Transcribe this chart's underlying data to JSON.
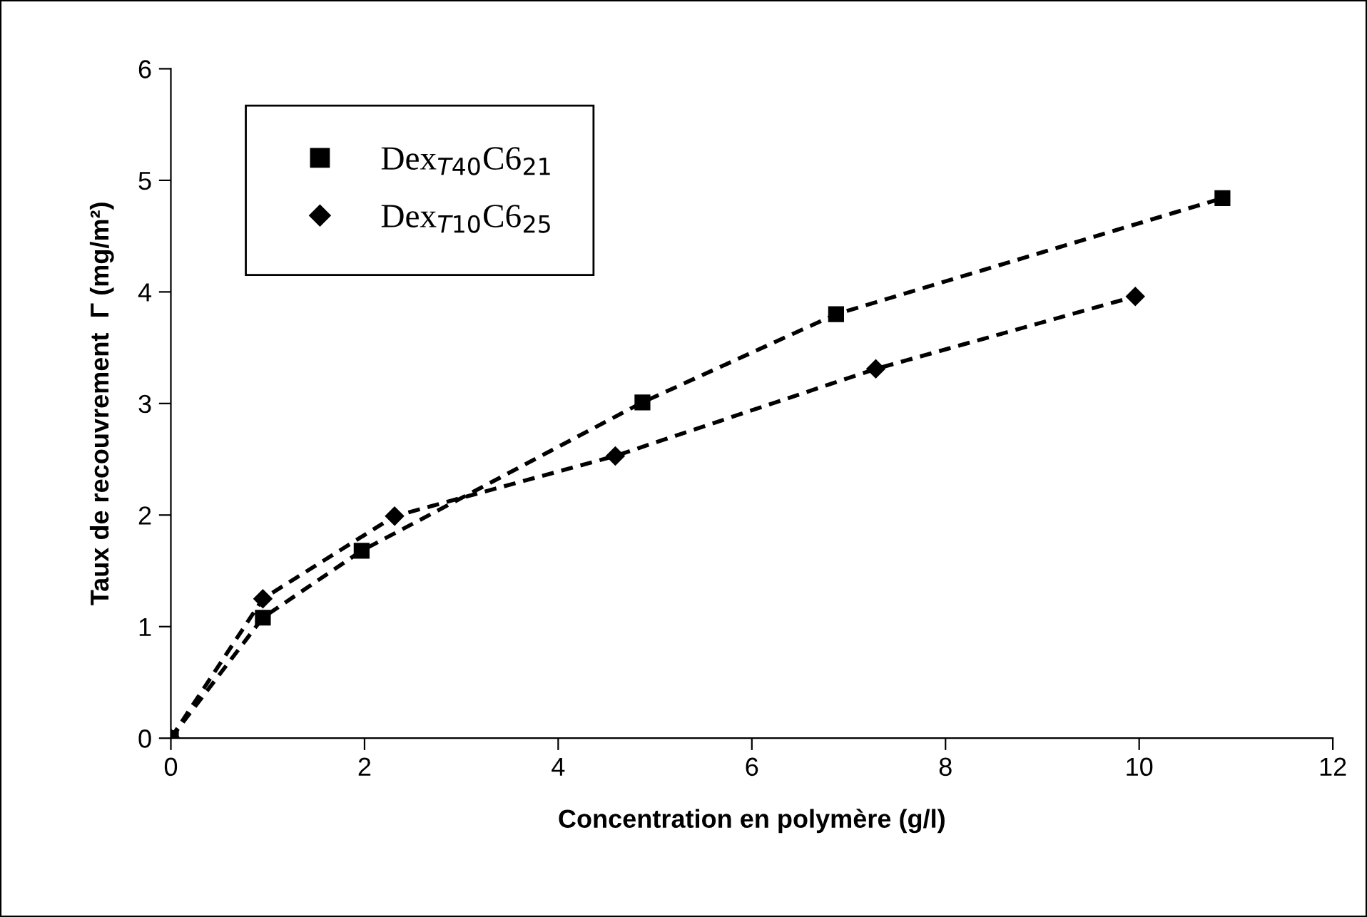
{
  "chart_data": {
    "type": "line",
    "xlabel": "Concentration en polymère (g/l)",
    "ylabel": "Taux de recouvrement  Γ (mg/m²)",
    "xlim": [
      0,
      12
    ],
    "xticks": [
      0,
      2,
      4,
      6,
      8,
      10,
      12
    ],
    "ylim": [
      0,
      6
    ],
    "yticks": [
      0,
      1,
      2,
      3,
      4,
      5,
      6
    ],
    "grid": false,
    "legend": "top left",
    "line_style": "dashed",
    "series": [
      {
        "name": "Dex$_{T40}$C6$_{21}$",
        "color": "#000000",
        "marker": "square",
        "x": [
          0,
          0.95,
          1.97,
          4.87,
          6.87,
          10.86
        ],
        "values": [
          0,
          1.08,
          1.68,
          3.01,
          3.8,
          4.84
        ]
      },
      {
        "name": "Dex$_{T10}$C6$_{25}$",
        "color": "#000000",
        "marker": "diamond",
        "x": [
          0,
          0.95,
          2.31,
          4.59,
          7.28,
          9.96
        ],
        "values": [
          0,
          1.25,
          1.99,
          2.53,
          3.31,
          3.96
        ]
      }
    ]
  }
}
